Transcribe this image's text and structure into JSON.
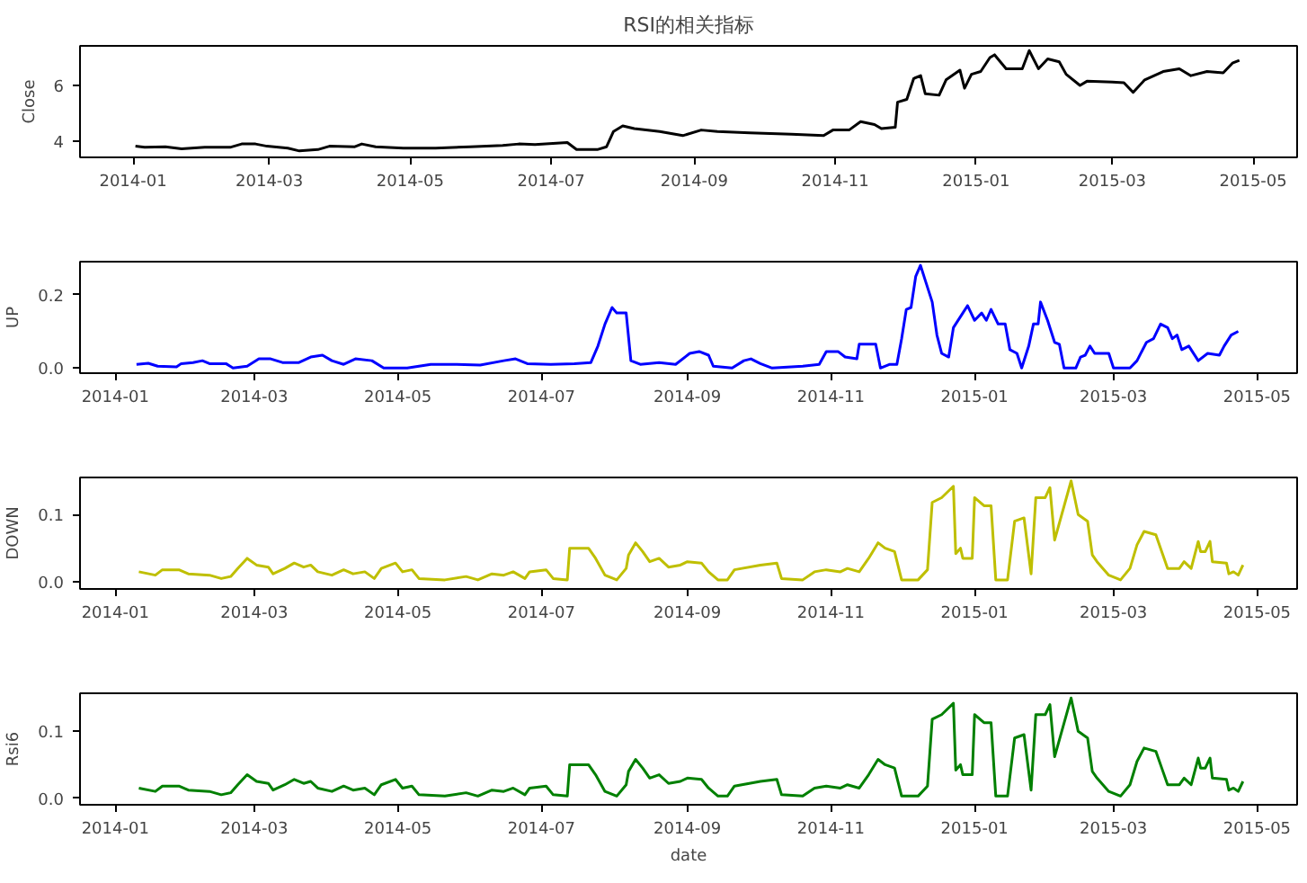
{
  "chart_data": [
    {
      "type": "line",
      "title": "RSI的相关指标",
      "ylabel": "Close",
      "xlim": [
        "2013-12-09",
        "2015-05-20"
      ],
      "ylim": [
        3.42,
        7.42
      ],
      "yticks": [
        4,
        6
      ],
      "xticks": [
        "2014-01",
        "2014-03",
        "2014-05",
        "2014-07",
        "2014-09",
        "2014-11",
        "2015-01",
        "2015-03",
        "2015-05"
      ],
      "x": [
        "2014-01-02",
        "2014-01-06",
        "2014-01-15",
        "2014-01-22",
        "2014-02-01",
        "2014-02-12",
        "2014-02-17",
        "2014-02-23",
        "2014-02-28",
        "2014-03-09",
        "2014-03-14",
        "2014-03-22",
        "2014-03-27",
        "2014-04-07",
        "2014-04-10",
        "2014-04-16",
        "2014-04-28",
        "2014-05-12",
        "2014-05-27",
        "2014-06-10",
        "2014-06-17",
        "2014-06-24",
        "2014-07-08",
        "2014-07-12",
        "2014-07-21",
        "2014-07-25",
        "2014-07-28",
        "2014-08-01",
        "2014-08-06",
        "2014-08-17",
        "2014-08-27",
        "2014-09-04",
        "2014-09-11",
        "2014-09-25",
        "2014-10-13",
        "2014-10-27",
        "2014-10-31",
        "2014-11-07",
        "2014-11-12",
        "2014-11-18",
        "2014-11-21",
        "2014-11-27",
        "2014-11-28",
        "2014-12-02",
        "2014-12-05",
        "2014-12-08",
        "2014-12-10",
        "2014-12-16",
        "2014-12-19",
        "2014-12-25",
        "2014-12-27",
        "2014-12-30",
        "2015-01-03",
        "2015-01-07",
        "2015-01-09",
        "2015-01-14",
        "2015-01-21",
        "2015-01-24",
        "2015-01-28",
        "2015-02-01",
        "2015-02-06",
        "2015-02-09",
        "2015-02-15",
        "2015-02-18",
        "2015-03-01",
        "2015-03-06",
        "2015-03-10",
        "2015-03-15",
        "2015-03-23",
        "2015-03-30",
        "2015-04-04",
        "2015-04-11",
        "2015-04-18",
        "2015-04-22",
        "2015-04-25"
      ],
      "series": [
        {
          "color": "#000000",
          "values": [
            3.82,
            3.78,
            3.8,
            3.73,
            3.78,
            3.78,
            3.9,
            3.9,
            3.82,
            3.75,
            3.65,
            3.7,
            3.82,
            3.8,
            3.9,
            3.8,
            3.75,
            3.75,
            3.8,
            3.85,
            3.9,
            3.88,
            3.95,
            3.7,
            3.7,
            3.8,
            4.35,
            4.55,
            4.45,
            4.35,
            4.2,
            4.4,
            4.35,
            4.3,
            4.25,
            4.2,
            4.4,
            4.4,
            4.7,
            4.6,
            4.45,
            4.5,
            5.4,
            5.5,
            6.25,
            6.35,
            5.7,
            5.65,
            6.2,
            6.55,
            5.9,
            6.4,
            6.5,
            7.0,
            7.1,
            6.6,
            6.6,
            7.25,
            6.6,
            6.95,
            6.85,
            6.4,
            6.0,
            6.15,
            6.12,
            6.1,
            5.75,
            6.2,
            6.5,
            6.6,
            6.35,
            6.5,
            6.45,
            6.8,
            6.9
          ]
        }
      ]
    },
    {
      "type": "line",
      "ylabel": "UP",
      "xlim": [
        "2013-12-17",
        "2015-05-18"
      ],
      "ylim": [
        -0.014,
        0.29
      ],
      "yticks": [
        {
          "value": 0,
          "label": "0.0"
        },
        {
          "value": 0.2,
          "label": "0.2"
        }
      ],
      "xticks": [
        "2014-01",
        "2014-03",
        "2014-05",
        "2014-07",
        "2014-09",
        "2014-11",
        "2015-01",
        "2015-03",
        "2015-05"
      ],
      "x": [
        "2014-01-10",
        "2014-01-15",
        "2014-01-19",
        "2014-01-27",
        "2014-01-29",
        "2014-02-03",
        "2014-02-07",
        "2014-02-10",
        "2014-02-17",
        "2014-02-20",
        "2014-02-26",
        "2014-03-03",
        "2014-03-08",
        "2014-03-13",
        "2014-03-20",
        "2014-03-25",
        "2014-03-30",
        "2014-04-03",
        "2014-04-08",
        "2014-04-13",
        "2014-04-20",
        "2014-04-25",
        "2014-05-05",
        "2014-05-15",
        "2014-05-25",
        "2014-06-05",
        "2014-06-15",
        "2014-06-20",
        "2014-06-25",
        "2014-07-05",
        "2014-07-15",
        "2014-07-22",
        "2014-07-25",
        "2014-07-28",
        "2014-07-31",
        "2014-08-02",
        "2014-08-06",
        "2014-08-08",
        "2014-08-12",
        "2014-08-20",
        "2014-08-27",
        "2014-09-02",
        "2014-09-06",
        "2014-09-10",
        "2014-09-12",
        "2014-09-20",
        "2014-09-25",
        "2014-09-28",
        "2014-10-02",
        "2014-10-07",
        "2014-10-20",
        "2014-10-27",
        "2014-10-30",
        "2014-11-04",
        "2014-11-07",
        "2014-11-12",
        "2014-11-13",
        "2014-11-20",
        "2014-11-22",
        "2014-11-26",
        "2014-11-29",
        "2014-12-01",
        "2014-12-03",
        "2014-12-05",
        "2014-12-07",
        "2014-12-09",
        "2014-12-11",
        "2014-12-14",
        "2014-12-16",
        "2014-12-18",
        "2014-12-21",
        "2014-12-23",
        "2014-12-27",
        "2014-12-29",
        "2015-01-01",
        "2015-01-04",
        "2015-01-06",
        "2015-01-08",
        "2015-01-11",
        "2015-01-14",
        "2015-01-16",
        "2015-01-19",
        "2015-01-21",
        "2015-01-24",
        "2015-01-26",
        "2015-01-28",
        "2015-01-29",
        "2015-02-01",
        "2015-02-04",
        "2015-02-06",
        "2015-02-08",
        "2015-02-13",
        "2015-02-15",
        "2015-02-17",
        "2015-02-19",
        "2015-02-21",
        "2015-02-27",
        "2015-03-01",
        "2015-03-08",
        "2015-03-11",
        "2015-03-15",
        "2015-03-18",
        "2015-03-21",
        "2015-03-24",
        "2015-03-26",
        "2015-03-28",
        "2015-03-30",
        "2015-04-02",
        "2015-04-06",
        "2015-04-10",
        "2015-04-15",
        "2015-04-17",
        "2015-04-20",
        "2015-04-23"
      ],
      "series": [
        {
          "color": "#0000ff",
          "values": [
            0.01,
            0.013,
            0.005,
            0.003,
            0.012,
            0.015,
            0.02,
            0.012,
            0.012,
            0.0,
            0.005,
            0.025,
            0.025,
            0.015,
            0.015,
            0.03,
            0.035,
            0.02,
            0.01,
            0.025,
            0.02,
            0.0,
            0.0,
            0.01,
            0.01,
            0.008,
            0.02,
            0.025,
            0.012,
            0.01,
            0.012,
            0.015,
            0.06,
            0.12,
            0.165,
            0.15,
            0.15,
            0.02,
            0.01,
            0.015,
            0.01,
            0.04,
            0.045,
            0.035,
            0.005,
            0.0,
            0.02,
            0.025,
            0.012,
            0.0,
            0.005,
            0.01,
            0.045,
            0.045,
            0.03,
            0.025,
            0.065,
            0.065,
            0.0,
            0.01,
            0.01,
            0.08,
            0.16,
            0.165,
            0.25,
            0.28,
            0.24,
            0.18,
            0.09,
            0.04,
            0.03,
            0.11,
            0.15,
            0.17,
            0.13,
            0.15,
            0.13,
            0.16,
            0.12,
            0.12,
            0.05,
            0.04,
            0.0,
            0.06,
            0.12,
            0.12,
            0.18,
            0.13,
            0.07,
            0.065,
            0.0,
            0.0,
            0.03,
            0.035,
            0.06,
            0.04,
            0.04,
            0.0,
            0.0,
            0.02,
            0.07,
            0.08,
            0.12,
            0.11,
            0.08,
            0.09,
            0.05,
            0.06,
            0.02,
            0.04,
            0.035,
            0.06,
            0.09,
            0.1
          ]
        }
      ]
    },
    {
      "type": "line",
      "ylabel": "DOWN",
      "xlim": [
        "2013-12-17",
        "2015-05-18"
      ],
      "ylim": [
        -0.0105,
        0.155
      ],
      "yticks": [
        {
          "value": 0,
          "label": "0.0"
        },
        {
          "value": 0.1,
          "label": "0.1"
        }
      ],
      "xticks": [
        "2014-01",
        "2014-03",
        "2014-05",
        "2014-07",
        "2014-09",
        "2014-11",
        "2015-01",
        "2015-03",
        "2015-05"
      ],
      "x": [
        "2014-01-11",
        "2014-01-18",
        "2014-01-21",
        "2014-01-28",
        "2014-02-01",
        "2014-02-10",
        "2014-02-15",
        "2014-02-19",
        "2014-02-22",
        "2014-02-26",
        "2014-03-02",
        "2014-03-07",
        "2014-03-09",
        "2014-03-14",
        "2014-03-18",
        "2014-03-22",
        "2014-03-25",
        "2014-03-28",
        "2014-04-03",
        "2014-04-08",
        "2014-04-12",
        "2014-04-17",
        "2014-04-21",
        "2014-04-24",
        "2014-04-30",
        "2014-05-03",
        "2014-05-07",
        "2014-05-10",
        "2014-05-21",
        "2014-05-30",
        "2014-06-04",
        "2014-06-10",
        "2014-06-15",
        "2014-06-19",
        "2014-06-24",
        "2014-06-26",
        "2014-07-03",
        "2014-07-06",
        "2014-07-12",
        "2014-07-13",
        "2014-07-21",
        "2014-07-24",
        "2014-07-28",
        "2014-08-02",
        "2014-08-06",
        "2014-08-07",
        "2014-08-10",
        "2014-08-13",
        "2014-08-16",
        "2014-08-20",
        "2014-08-24",
        "2014-08-29",
        "2014-09-01",
        "2014-09-07",
        "2014-09-10",
        "2014-09-14",
        "2014-09-18",
        "2014-09-21",
        "2014-10-02",
        "2014-10-09",
        "2014-10-11",
        "2014-10-20",
        "2014-10-25",
        "2014-10-30",
        "2014-11-05",
        "2014-11-08",
        "2014-11-13",
        "2014-11-17",
        "2014-11-21",
        "2014-11-24",
        "2014-11-28",
        "2014-12-01",
        "2014-12-08",
        "2014-12-12",
        "2014-12-14",
        "2014-12-18",
        "2014-12-23",
        "2014-12-24",
        "2014-12-26",
        "2014-12-27",
        "2014-12-31",
        "2015-01-01",
        "2015-01-05",
        "2015-01-08",
        "2015-01-10",
        "2015-01-15",
        "2015-01-18",
        "2015-01-22",
        "2015-01-25",
        "2015-01-27",
        "2015-01-31",
        "2015-02-02",
        "2015-02-04",
        "2015-02-11",
        "2015-02-14",
        "2015-02-18",
        "2015-02-20",
        "2015-02-22",
        "2015-02-27",
        "2015-03-04",
        "2015-03-08",
        "2015-03-11",
        "2015-03-14",
        "2015-03-19",
        "2015-03-22",
        "2015-03-24",
        "2015-03-29",
        "2015-03-31",
        "2015-04-03",
        "2015-04-06",
        "2015-04-07",
        "2015-04-09",
        "2015-04-11",
        "2015-04-12",
        "2015-04-18",
        "2015-04-19",
        "2015-04-21",
        "2015-04-23",
        "2015-04-25"
      ],
      "series": [
        {
          "color": "#bfbf00",
          "values": [
            0.015,
            0.01,
            0.018,
            0.018,
            0.012,
            0.01,
            0.005,
            0.008,
            0.02,
            0.035,
            0.025,
            0.022,
            0.012,
            0.02,
            0.028,
            0.022,
            0.025,
            0.015,
            0.01,
            0.018,
            0.012,
            0.015,
            0.005,
            0.02,
            0.028,
            0.015,
            0.018,
            0.005,
            0.003,
            0.008,
            0.003,
            0.012,
            0.01,
            0.015,
            0.005,
            0.015,
            0.018,
            0.005,
            0.003,
            0.05,
            0.05,
            0.035,
            0.01,
            0.003,
            0.02,
            0.04,
            0.058,
            0.045,
            0.03,
            0.035,
            0.022,
            0.025,
            0.03,
            0.028,
            0.015,
            0.003,
            0.003,
            0.018,
            0.025,
            0.028,
            0.005,
            0.003,
            0.015,
            0.018,
            0.015,
            0.02,
            0.015,
            0.035,
            0.058,
            0.05,
            0.045,
            0.003,
            0.003,
            0.018,
            0.118,
            0.125,
            0.142,
            0.042,
            0.05,
            0.035,
            0.035,
            0.125,
            0.113,
            0.113,
            0.003,
            0.003,
            0.09,
            0.095,
            0.012,
            0.125,
            0.125,
            0.14,
            0.062,
            0.15,
            0.1,
            0.09,
            0.04,
            0.03,
            0.01,
            0.003,
            0.02,
            0.055,
            0.075,
            0.07,
            0.04,
            0.02,
            0.02,
            0.03,
            0.02,
            0.06,
            0.045,
            0.045,
            0.06,
            0.03,
            0.028,
            0.012,
            0.015,
            0.01,
            0.025
          ]
        }
      ]
    },
    {
      "type": "line",
      "ylabel": "Rsi6",
      "xlabel": "date",
      "xlim": [
        "2013-12-17",
        "2015-05-18"
      ],
      "ylim": [
        -0.01,
        0.157
      ],
      "yticks": [
        {
          "value": 0,
          "label": "0.0"
        },
        {
          "value": 0.1,
          "label": "0.1"
        }
      ],
      "xticks": [
        "2014-01",
        "2014-03",
        "2014-05",
        "2014-07",
        "2014-09",
        "2014-11",
        "2015-01",
        "2015-03",
        "2015-05"
      ],
      "x": [
        "2014-01-11",
        "2014-01-18",
        "2014-01-21",
        "2014-01-28",
        "2014-02-01",
        "2014-02-10",
        "2014-02-15",
        "2014-02-19",
        "2014-02-22",
        "2014-02-26",
        "2014-03-02",
        "2014-03-07",
        "2014-03-09",
        "2014-03-14",
        "2014-03-18",
        "2014-03-22",
        "2014-03-25",
        "2014-03-28",
        "2014-04-03",
        "2014-04-08",
        "2014-04-12",
        "2014-04-17",
        "2014-04-21",
        "2014-04-24",
        "2014-04-30",
        "2014-05-03",
        "2014-05-07",
        "2014-05-10",
        "2014-05-21",
        "2014-05-30",
        "2014-06-04",
        "2014-06-10",
        "2014-06-15",
        "2014-06-19",
        "2014-06-24",
        "2014-06-26",
        "2014-07-03",
        "2014-07-06",
        "2014-07-12",
        "2014-07-13",
        "2014-07-21",
        "2014-07-24",
        "2014-07-28",
        "2014-08-02",
        "2014-08-06",
        "2014-08-07",
        "2014-08-10",
        "2014-08-13",
        "2014-08-16",
        "2014-08-20",
        "2014-08-24",
        "2014-08-29",
        "2014-09-01",
        "2014-09-07",
        "2014-09-10",
        "2014-09-14",
        "2014-09-18",
        "2014-09-21",
        "2014-10-02",
        "2014-10-09",
        "2014-10-11",
        "2014-10-20",
        "2014-10-25",
        "2014-10-30",
        "2014-11-05",
        "2014-11-08",
        "2014-11-13",
        "2014-11-17",
        "2014-11-21",
        "2014-11-24",
        "2014-11-28",
        "2014-12-01",
        "2014-12-08",
        "2014-12-12",
        "2014-12-14",
        "2014-12-18",
        "2014-12-23",
        "2014-12-24",
        "2014-12-26",
        "2014-12-27",
        "2014-12-31",
        "2015-01-01",
        "2015-01-05",
        "2015-01-08",
        "2015-01-10",
        "2015-01-15",
        "2015-01-18",
        "2015-01-22",
        "2015-01-25",
        "2015-01-27",
        "2015-01-31",
        "2015-02-02",
        "2015-02-04",
        "2015-02-11",
        "2015-02-14",
        "2015-02-18",
        "2015-02-20",
        "2015-02-22",
        "2015-02-27",
        "2015-03-04",
        "2015-03-08",
        "2015-03-11",
        "2015-03-14",
        "2015-03-19",
        "2015-03-22",
        "2015-03-24",
        "2015-03-29",
        "2015-03-31",
        "2015-04-03",
        "2015-04-06",
        "2015-04-07",
        "2015-04-09",
        "2015-04-11",
        "2015-04-12",
        "2015-04-18",
        "2015-04-19",
        "2015-04-21",
        "2015-04-23",
        "2015-04-25"
      ],
      "series": [
        {
          "color": "#008000",
          "values": [
            0.015,
            0.01,
            0.018,
            0.018,
            0.012,
            0.01,
            0.005,
            0.008,
            0.02,
            0.035,
            0.025,
            0.022,
            0.012,
            0.02,
            0.028,
            0.022,
            0.025,
            0.015,
            0.01,
            0.018,
            0.012,
            0.015,
            0.005,
            0.02,
            0.028,
            0.015,
            0.018,
            0.005,
            0.003,
            0.008,
            0.003,
            0.012,
            0.01,
            0.015,
            0.005,
            0.015,
            0.018,
            0.005,
            0.003,
            0.05,
            0.05,
            0.035,
            0.01,
            0.003,
            0.02,
            0.04,
            0.058,
            0.045,
            0.03,
            0.035,
            0.022,
            0.025,
            0.03,
            0.028,
            0.015,
            0.003,
            0.003,
            0.018,
            0.025,
            0.028,
            0.005,
            0.003,
            0.015,
            0.018,
            0.015,
            0.02,
            0.015,
            0.035,
            0.058,
            0.05,
            0.045,
            0.003,
            0.003,
            0.018,
            0.118,
            0.125,
            0.142,
            0.042,
            0.05,
            0.035,
            0.035,
            0.125,
            0.113,
            0.113,
            0.003,
            0.003,
            0.09,
            0.095,
            0.012,
            0.125,
            0.125,
            0.14,
            0.062,
            0.15,
            0.1,
            0.09,
            0.04,
            0.03,
            0.01,
            0.003,
            0.02,
            0.055,
            0.075,
            0.07,
            0.04,
            0.02,
            0.02,
            0.03,
            0.02,
            0.06,
            0.045,
            0.045,
            0.06,
            0.03,
            0.028,
            0.012,
            0.015,
            0.01,
            0.025
          ]
        }
      ]
    }
  ]
}
